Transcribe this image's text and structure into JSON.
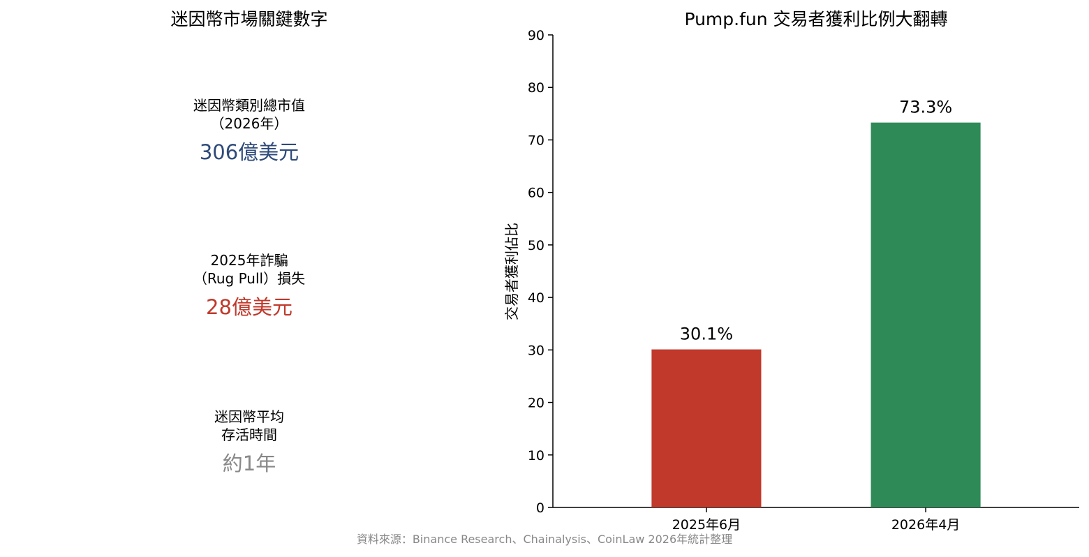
{
  "left_panel": {
    "title": "迷因幣市場關鍵數字",
    "metrics": [
      {
        "label_lines": [
          "迷因幣類別總市值",
          "（2026年）"
        ],
        "value": "306億美元",
        "color": "#2e4a7a"
      },
      {
        "label_lines": [
          "2025年詐騙",
          "（Rug Pull）損失"
        ],
        "value": "28億美元",
        "color": "#c0392b"
      },
      {
        "label_lines": [
          "迷因幣平均",
          "存活時間"
        ],
        "value": "約1年",
        "color": "#888888"
      }
    ]
  },
  "chart_data": {
    "type": "bar",
    "title": "Pump.fun 交易者獲利比例大翻轉",
    "xlabel": "",
    "ylabel": "交易者獲利佔比",
    "categories": [
      "2025年6月",
      "2026年4月"
    ],
    "values": [
      30.1,
      73.3
    ],
    "data_labels": [
      "30.1%",
      "73.3%"
    ],
    "colors": [
      "#c0392b",
      "#2e8b57"
    ],
    "ylim": [
      0,
      90
    ],
    "yticks": [
      0,
      10,
      20,
      30,
      40,
      50,
      60,
      70,
      80,
      90
    ],
    "grid": false,
    "legend": "none"
  },
  "source": "資料來源：Binance Research、Chainalysis、CoinLaw 2026年統計整理"
}
